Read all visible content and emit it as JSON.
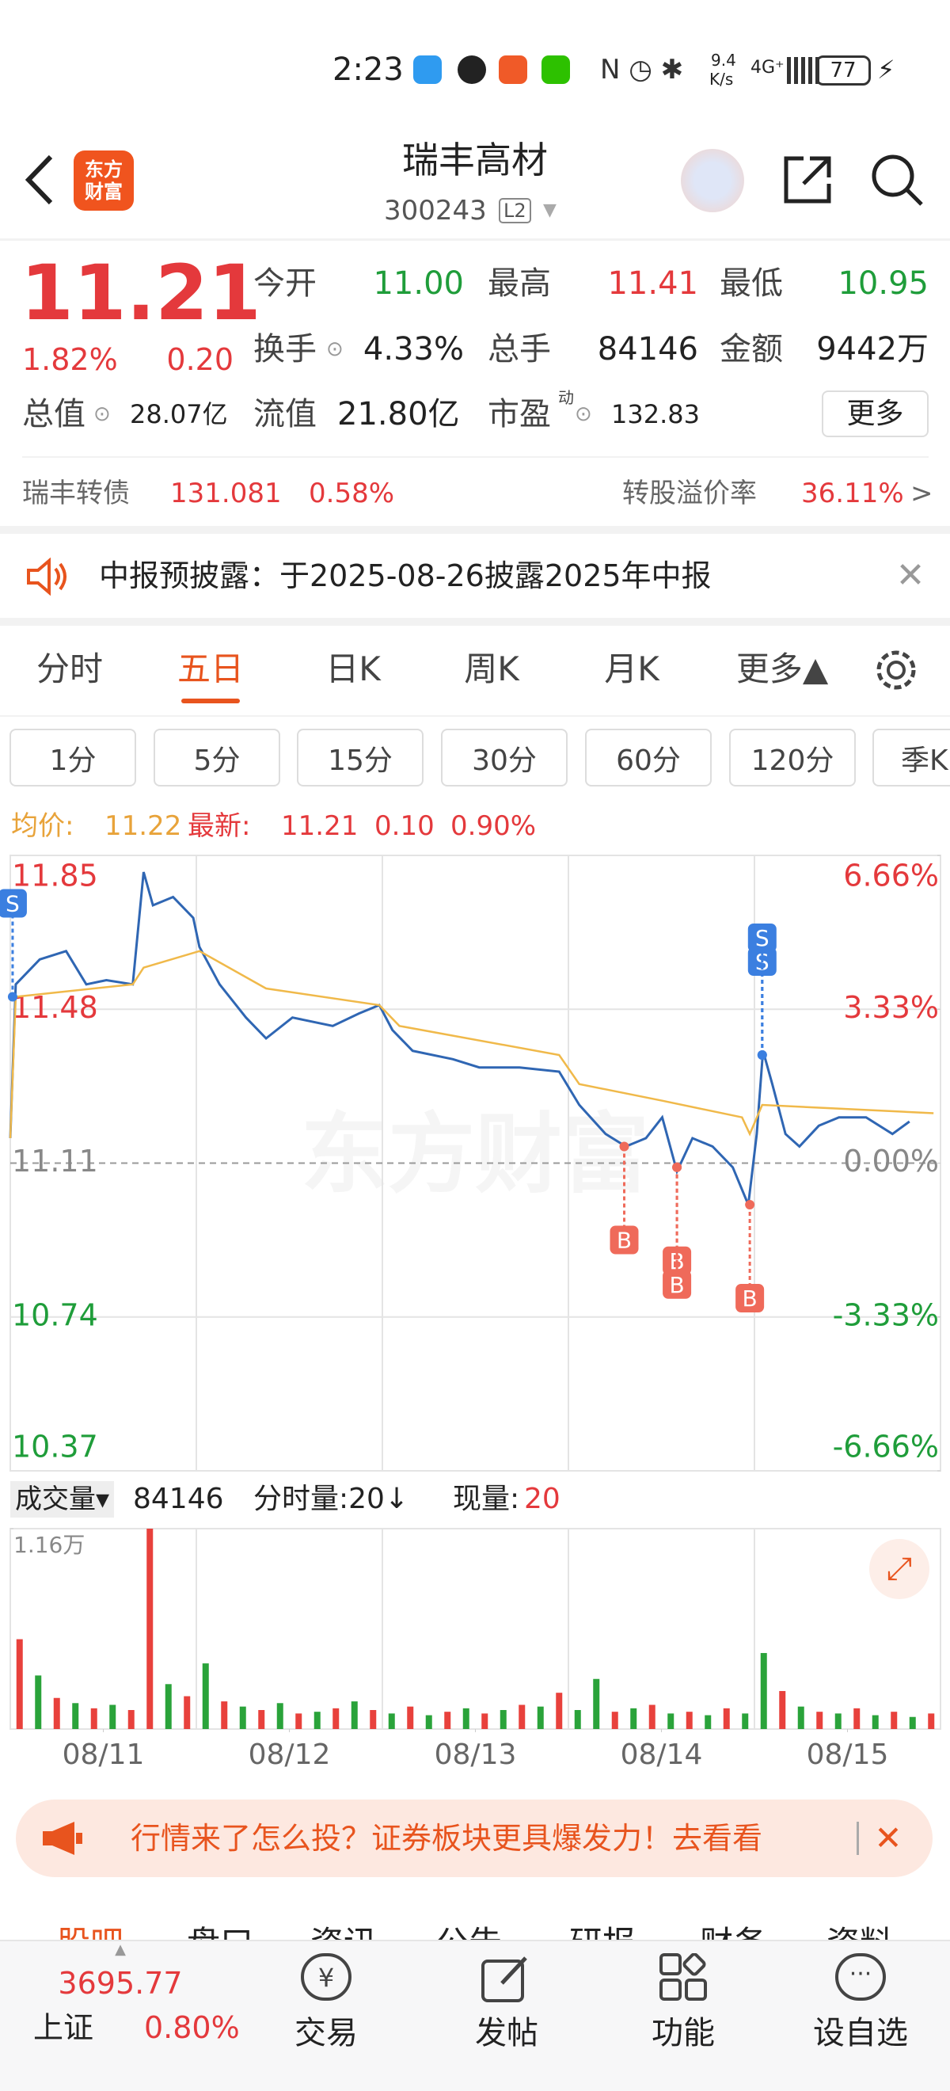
{
  "status_bar": {
    "time": "2:23",
    "speed": "9.4",
    "speed_unit": "K/s",
    "signal": "4G⁺",
    "battery": "77"
  },
  "header": {
    "logo_top": "东方",
    "logo_bottom": "财富",
    "title": "瑞丰高材",
    "code": "300243",
    "level": "L2"
  },
  "quote": {
    "price": "11.21",
    "change_pct": "1.82%",
    "change": "0.20",
    "row1": [
      {
        "label": "今开",
        "value": "11.00"
      },
      {
        "label": "最高",
        "value": "11.41"
      },
      {
        "label": "最低",
        "value": "10.95"
      }
    ],
    "row2": [
      {
        "label": "换手",
        "value": "4.33%"
      },
      {
        "label": "总手",
        "value": "84146"
      },
      {
        "label": "金额",
        "value": "9442万"
      }
    ],
    "market_cap_label": "总值",
    "market_cap": "28.07亿",
    "float_cap_label": "流值",
    "float_cap": "21.80亿",
    "pe_label": "市盈",
    "pe_sup": "动",
    "pe": "132.83",
    "more": "更多"
  },
  "bond": {
    "name": "瑞丰转债",
    "price": "131.081",
    "change": "0.58%",
    "premium_label": "转股溢价率",
    "premium": "36.11%",
    "arrow": ">"
  },
  "notice": {
    "text": "中报预披露：于2025-08-26披露2025年中报"
  },
  "tabs": [
    "分时",
    "五日",
    "日K",
    "周K",
    "月K",
    "更多▲"
  ],
  "periods": [
    "1分",
    "5分",
    "15分",
    "30分",
    "60分",
    "120分",
    "季K"
  ],
  "legend": {
    "avg_label": "均价:",
    "avg": "11.22",
    "latest_label": "最新:",
    "latest": "11.21",
    "change": "0.10",
    "change_pct": "0.90%"
  },
  "watermark": "东方财富",
  "chart_data": [
    {
      "type": "line",
      "xlim": [
        0,
        1200
      ],
      "ylim": [
        10.37,
        11.85
      ],
      "yticks": [
        11.85,
        11.48,
        11.11,
        10.74,
        10.37
      ],
      "y2lim": [
        -6.66,
        6.66
      ],
      "y2ticks": [
        {
          "value": 6.66,
          "label": "6.66%"
        },
        {
          "value": 3.33,
          "label": "3.33%"
        },
        {
          "value": 0,
          "label": "0.00%"
        },
        {
          "value": -3.33,
          "label": "-3.33%"
        },
        {
          "value": -6.66,
          "label": "-6.66%"
        }
      ],
      "series": [
        {
          "color": "#2f66b3",
          "x": [
            0,
            7,
            38,
            72,
            98,
            124,
            158,
            172,
            184,
            210,
            236,
            244,
            270,
            304,
            330,
            364,
            416,
            450,
            476,
            493,
            519,
            571,
            605,
            657,
            708,
            734,
            768,
            794,
            820,
            841,
            860,
            880,
            906,
            932,
            952,
            963,
            971,
            983,
            1000,
            1018,
            1043,
            1069,
            1104,
            1138,
            1160
          ],
          "values": [
            11.17,
            11.54,
            11.6,
            11.62,
            11.54,
            11.55,
            11.54,
            11.81,
            11.73,
            11.75,
            11.7,
            11.63,
            11.54,
            11.46,
            11.41,
            11.46,
            11.44,
            11.47,
            11.49,
            11.43,
            11.38,
            11.36,
            11.34,
            11.34,
            11.33,
            11.25,
            11.18,
            11.15,
            11.17,
            11.22,
            11.09,
            11.17,
            11.15,
            11.1,
            11.01,
            11.18,
            11.38,
            11.3,
            11.18,
            11.15,
            11.2,
            11.22,
            11.22,
            11.18,
            11.21
          ]
        },
        {
          "color": "#f0b94a",
          "x": [
            0,
            7,
            158,
            172,
            244,
            330,
            476,
            502,
            708,
            734,
            841,
            944,
            954,
            970,
            1191
          ],
          "values": [
            11.17,
            11.51,
            11.54,
            11.58,
            11.62,
            11.53,
            11.49,
            11.44,
            11.37,
            11.3,
            11.26,
            11.22,
            11.18,
            11.25,
            11.23
          ]
        }
      ],
      "markers": [
        {
          "label": "S",
          "x": 3,
          "y": 11.51
        },
        {
          "label": "S",
          "x": 970,
          "y": 11.37
        },
        {
          "label": "S",
          "x": 970,
          "y": 11.37
        },
        {
          "label": "B",
          "x": 792,
          "y": 11.15
        },
        {
          "label": "B",
          "x": 860,
          "y": 11.1
        },
        {
          "label": "B",
          "x": 860,
          "y": 11.1
        },
        {
          "label": "B",
          "x": 954,
          "y": 11.01
        }
      ]
    },
    {
      "type": "bar",
      "xlim": [
        0,
        1200
      ],
      "ylim": [
        0,
        11600
      ],
      "yticks": [
        {
          "value": 11600,
          "label": "1.16万"
        }
      ],
      "xticks": [
        {
          "value": 120,
          "label": "08/11"
        },
        {
          "value": 360,
          "label": "08/12"
        },
        {
          "value": 600,
          "label": "08/13"
        },
        {
          "value": 840,
          "label": "08/14"
        },
        {
          "value": 1080,
          "label": "08/15"
        }
      ],
      "x": [
        12,
        36,
        60,
        84,
        108,
        132,
        156,
        180,
        204,
        228,
        252,
        276,
        300,
        324,
        348,
        372,
        396,
        420,
        444,
        468,
        492,
        516,
        540,
        564,
        588,
        612,
        636,
        660,
        684,
        708,
        732,
        756,
        780,
        804,
        828,
        852,
        876,
        900,
        924,
        948,
        972,
        996,
        1020,
        1044,
        1068,
        1092,
        1116,
        1140,
        1164,
        1188
      ],
      "values": [
        5200,
        3100,
        1800,
        1500,
        1200,
        1400,
        1100,
        11600,
        2600,
        1900,
        3800,
        1600,
        1300,
        1100,
        1500,
        900,
        1000,
        1200,
        1600,
        1100,
        900,
        1300,
        800,
        1000,
        1200,
        900,
        1100,
        1400,
        1300,
        2100,
        1100,
        2900,
        1000,
        1200,
        1400,
        900,
        1000,
        800,
        1200,
        900,
        4400,
        2200,
        1300,
        1000,
        900,
        1200,
        800,
        1000,
        700,
        900
      ],
      "colors": [
        "#e8413c",
        "#2aa33a",
        "#e8413c",
        "#2aa33a",
        "#e8413c",
        "#2aa33a",
        "#e8413c",
        "#e8413c",
        "#2aa33a",
        "#e8413c",
        "#2aa33a",
        "#e8413c",
        "#2aa33a",
        "#e8413c",
        "#2aa33a",
        "#e8413c",
        "#2aa33a",
        "#e8413c",
        "#2aa33a",
        "#e8413c",
        "#2aa33a",
        "#e8413c",
        "#2aa33a",
        "#e8413c",
        "#2aa33a",
        "#e8413c",
        "#2aa33a",
        "#e8413c",
        "#2aa33a",
        "#e8413c",
        "#2aa33a",
        "#2aa33a",
        "#e8413c",
        "#2aa33a",
        "#e8413c",
        "#2aa33a",
        "#e8413c",
        "#2aa33a",
        "#e8413c",
        "#2aa33a",
        "#2aa33a",
        "#e8413c",
        "#2aa33a",
        "#e8413c",
        "#2aa33a",
        "#e8413c",
        "#2aa33a",
        "#e8413c",
        "#2aa33a",
        "#e8413c"
      ]
    }
  ],
  "volume_header": {
    "selector": "成交量▾",
    "total": "84146",
    "tick_volume": "分时量:20↓",
    "current_label": "现量:",
    "current": "20"
  },
  "ad": {
    "text": "行情来了怎么投？证券板块更具爆发力！去看看"
  },
  "bottom_tabs": [
    "股吧",
    "盘口",
    "资讯",
    "公告",
    "研报",
    "财务",
    "资料"
  ],
  "nav": {
    "index_value": "3695.77",
    "index_name": "上证",
    "index_change": "0.80%",
    "items": [
      "交易",
      "发帖",
      "功能",
      "设自选"
    ]
  }
}
